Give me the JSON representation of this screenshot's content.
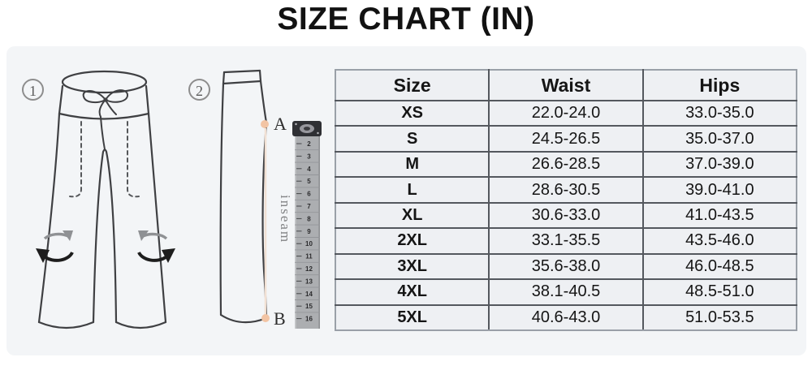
{
  "title": "SIZE CHART (IN)",
  "figures": {
    "front": {
      "badge": "1"
    },
    "side": {
      "badge": "2",
      "point_a_label": "A",
      "point_b_label": "B",
      "inseam_label": "inseam",
      "ruler_numbers": [
        "2",
        "3",
        "4",
        "5",
        "6",
        "7",
        "8",
        "9",
        "10",
        "11",
        "12",
        "13",
        "14",
        "15",
        "16"
      ]
    }
  },
  "table": {
    "headers": [
      "Size",
      "Waist",
      "Hips"
    ],
    "rows": [
      [
        "XS",
        "22.0-24.0",
        "33.0-35.0"
      ],
      [
        "S",
        "24.5-26.5",
        "35.0-37.0"
      ],
      [
        "M",
        "26.6-28.5",
        "37.0-39.0"
      ],
      [
        "L",
        "28.6-30.5",
        "39.0-41.0"
      ],
      [
        "XL",
        "30.6-33.0",
        "41.0-43.5"
      ],
      [
        "2XL",
        "33.1-35.5",
        "43.5-46.0"
      ],
      [
        "3XL",
        "35.6-38.0",
        "46.0-48.5"
      ],
      [
        "4XL",
        "38.1-40.5",
        "48.5-51.0"
      ],
      [
        "5XL",
        "40.6-43.0",
        "51.0-53.5"
      ]
    ]
  },
  "colors": {
    "panel_bg": "#f3f5f7",
    "cell_bg": "#eef0f3",
    "inner_border": "#54585e",
    "outer_border": "#9aa0a8",
    "line_art": "#3f4043",
    "marker_dot": "#f2c4a4",
    "title_color": "#121212"
  },
  "chart_data": {
    "type": "table",
    "title": "SIZE CHART (IN)",
    "unit": "in",
    "columns": [
      "Size",
      "Waist",
      "Hips"
    ],
    "rows": [
      [
        "XS",
        "22.0-24.0",
        "33.0-35.0"
      ],
      [
        "S",
        "24.5-26.5",
        "35.0-37.0"
      ],
      [
        "M",
        "26.6-28.5",
        "37.0-39.0"
      ],
      [
        "L",
        "28.6-30.5",
        "39.0-41.0"
      ],
      [
        "XL",
        "30.6-33.0",
        "41.0-43.5"
      ],
      [
        "2XL",
        "33.1-35.5",
        "43.5-46.0"
      ],
      [
        "3XL",
        "35.6-38.0",
        "46.0-48.5"
      ],
      [
        "4XL",
        "38.1-40.5",
        "48.5-51.0"
      ],
      [
        "5XL",
        "40.6-43.0",
        "51.0-53.5"
      ]
    ]
  }
}
